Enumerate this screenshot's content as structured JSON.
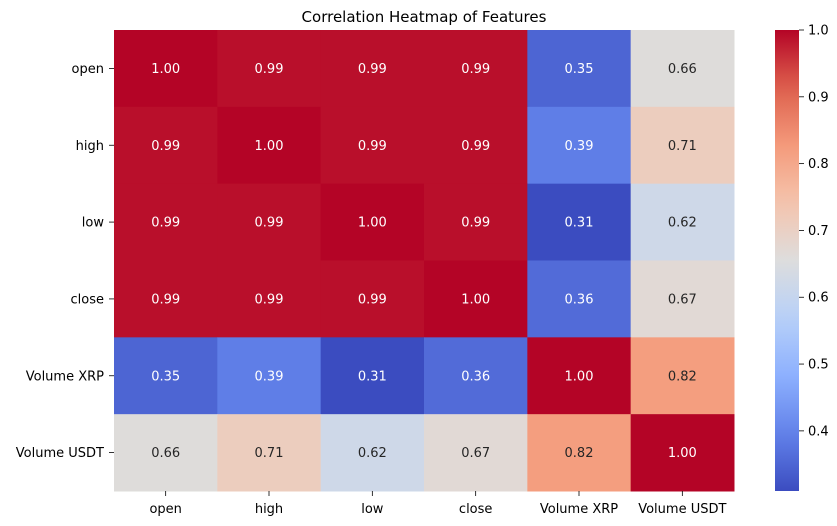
{
  "chart_data": {
    "type": "heatmap",
    "title": "Correlation Heatmap of Features",
    "xlabel": "",
    "ylabel": "",
    "x_categories": [
      "open",
      "high",
      "low",
      "close",
      "Volume XRP",
      "Volume USDT"
    ],
    "y_categories": [
      "open",
      "high",
      "low",
      "close",
      "Volume XRP",
      "Volume USDT"
    ],
    "values": [
      [
        1.0,
        0.99,
        0.99,
        0.99,
        0.35,
        0.66
      ],
      [
        0.99,
        1.0,
        0.99,
        0.99,
        0.39,
        0.71
      ],
      [
        0.99,
        0.99,
        1.0,
        0.99,
        0.31,
        0.62
      ],
      [
        0.99,
        0.99,
        0.99,
        1.0,
        0.36,
        0.67
      ],
      [
        0.35,
        0.39,
        0.31,
        0.36,
        1.0,
        0.82
      ],
      [
        0.66,
        0.71,
        0.62,
        0.67,
        0.82,
        1.0
      ]
    ],
    "value_labels": [
      [
        "1.00",
        "0.99",
        "0.99",
        "0.99",
        "0.35",
        "0.66"
      ],
      [
        "0.99",
        "1.00",
        "0.99",
        "0.99",
        "0.39",
        "0.71"
      ],
      [
        "0.99",
        "0.99",
        "1.00",
        "0.99",
        "0.31",
        "0.62"
      ],
      [
        "0.99",
        "0.99",
        "0.99",
        "1.00",
        "0.36",
        "0.67"
      ],
      [
        "0.35",
        "0.39",
        "0.31",
        "0.36",
        "1.00",
        "0.82"
      ],
      [
        "0.66",
        "0.71",
        "0.62",
        "0.67",
        "0.82",
        "1.00"
      ]
    ],
    "colormap": "coolwarm",
    "value_range": [
      0.31,
      1.0
    ],
    "colorbar": {
      "ticks": [
        0.4,
        0.5,
        0.6,
        0.7,
        0.8,
        0.9,
        1.0
      ],
      "tick_labels": [
        "0.4",
        "0.5",
        "0.6",
        "0.7",
        "0.8",
        "0.9",
        "1.0"
      ]
    },
    "grid": false
  }
}
